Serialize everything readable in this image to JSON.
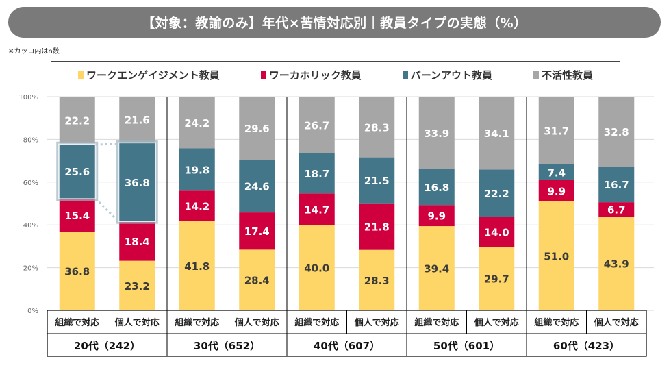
{
  "title": "【対象：教諭のみ】年代×苦情対応別｜教員タイプの実態（%）",
  "note": "※カッコ内はn数",
  "chart_data": {
    "type": "bar",
    "stacked": true,
    "title": "【対象：教諭のみ】年代×苦情対応別｜教員タイプの実態（%）",
    "xlabel": "",
    "ylabel": "",
    "ylim": [
      0,
      100
    ],
    "yticks": [
      "0%",
      "20%",
      "40%",
      "60%",
      "80%",
      "100%"
    ],
    "ytick_values": [
      0,
      20,
      40,
      60,
      80,
      100
    ],
    "grid": true,
    "legend_position": "top",
    "groups": [
      {
        "label": "20代（242）",
        "categories": [
          "組織で対応",
          "個人で対応"
        ]
      },
      {
        "label": "30代（652）",
        "categories": [
          "組織で対応",
          "個人で対応"
        ]
      },
      {
        "label": "40代（607）",
        "categories": [
          "組織で対応",
          "個人で対応"
        ]
      },
      {
        "label": "50代（601）",
        "categories": [
          "組織で対応",
          "個人で対応"
        ]
      },
      {
        "label": "60代（423）",
        "categories": [
          "組織で対応",
          "個人で対応"
        ]
      }
    ],
    "categories": [
      "組織で対応",
      "個人で対応",
      "組織で対応",
      "個人で対応",
      "組織で対応",
      "個人で対応",
      "組織で対応",
      "個人で対応",
      "組織で対応",
      "個人で対応"
    ],
    "series": [
      {
        "name": "ワークエンゲイジメント教員",
        "color": "#FDD667",
        "label_color": "#3a3a3a",
        "values": [
          36.8,
          23.2,
          41.8,
          28.4,
          40.0,
          28.3,
          39.4,
          29.7,
          51.0,
          43.9
        ]
      },
      {
        "name": "ワーカホリック教員",
        "color": "#D0003F",
        "label_color": "#ffffff",
        "values": [
          15.4,
          18.4,
          14.2,
          17.4,
          14.7,
          21.8,
          9.9,
          14.0,
          9.9,
          6.7
        ]
      },
      {
        "name": "バーンアウト教員",
        "color": "#44768A",
        "label_color": "#ffffff",
        "values": [
          25.6,
          36.8,
          19.8,
          24.6,
          18.7,
          21.5,
          16.8,
          22.2,
          7.4,
          16.7
        ]
      },
      {
        "name": "不活性教員",
        "color": "#A6A6A6",
        "label_color": "#ffffff",
        "values": [
          22.2,
          21.6,
          24.2,
          29.6,
          26.7,
          28.3,
          33.9,
          34.1,
          31.7,
          32.8
        ]
      }
    ],
    "annotations": [
      {
        "type": "highlight",
        "series": "バーンアウト教員",
        "bars": [
          0,
          1
        ],
        "connector": "dotted"
      }
    ]
  }
}
